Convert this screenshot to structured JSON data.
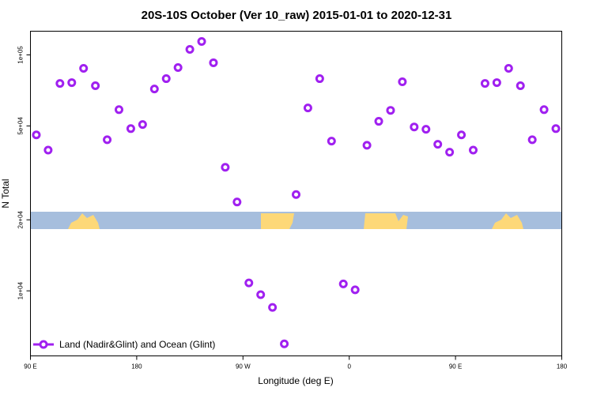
{
  "chart_data": {
    "type": "scatter",
    "title": "20S-10S October (Ver 10_raw)   2015-01-01 to 2020-12-31",
    "x_label": "Longitude (deg E)",
    "y_label": "N Total",
    "ylog": true,
    "xlim": [
      90,
      540
    ],
    "ylim": [
      5300,
      126000
    ],
    "xticks": [
      {
        "value": 90,
        "label": "90 E"
      },
      180,
      {
        "value": 270,
        "label": "90 W"
      },
      {
        "value": 360,
        "label": "0"
      },
      {
        "value": 450,
        "label": "90 E"
      },
      {
        "value": 540,
        "label": "180"
      }
    ],
    "yticks": [
      {
        "value": 10000,
        "label": "1e+04"
      },
      {
        "value": 20000,
        "label": "2e+04"
      },
      {
        "value": 50000,
        "label": "5e+04"
      },
      {
        "value": 100000,
        "label": "1e+05"
      }
    ],
    "legend": "bottom-left",
    "series": [
      {
        "name": "Land (Nadir&Glint) and Ocean (Glint)",
        "color": "#a020f0",
        "x": [
          95,
          105,
          115,
          125,
          135,
          145,
          155,
          165,
          175,
          185,
          195,
          205,
          215,
          225,
          235,
          245,
          255,
          265,
          275,
          285,
          295,
          305,
          315,
          325,
          335,
          345,
          355,
          365,
          375,
          385,
          395,
          405,
          415,
          425,
          435,
          445,
          455,
          465,
          475,
          485,
          495,
          505,
          515,
          525,
          535
        ],
        "values": [
          45800,
          39500,
          75700,
          76300,
          87700,
          74000,
          43700,
          58600,
          48700,
          50700,
          71700,
          79300,
          88400,
          105500,
          114000,
          92600,
          33400,
          23800,
          10800,
          9630,
          8510,
          5960,
          25600,
          59600,
          79300,
          43100,
          10700,
          10100,
          41400,
          52300,
          58200,
          76900,
          49500,
          48400,
          41800,
          38700,
          45800,
          39500,
          75700,
          76300,
          87700,
          74000,
          43700,
          58600,
          48700
        ]
      }
    ]
  }
}
